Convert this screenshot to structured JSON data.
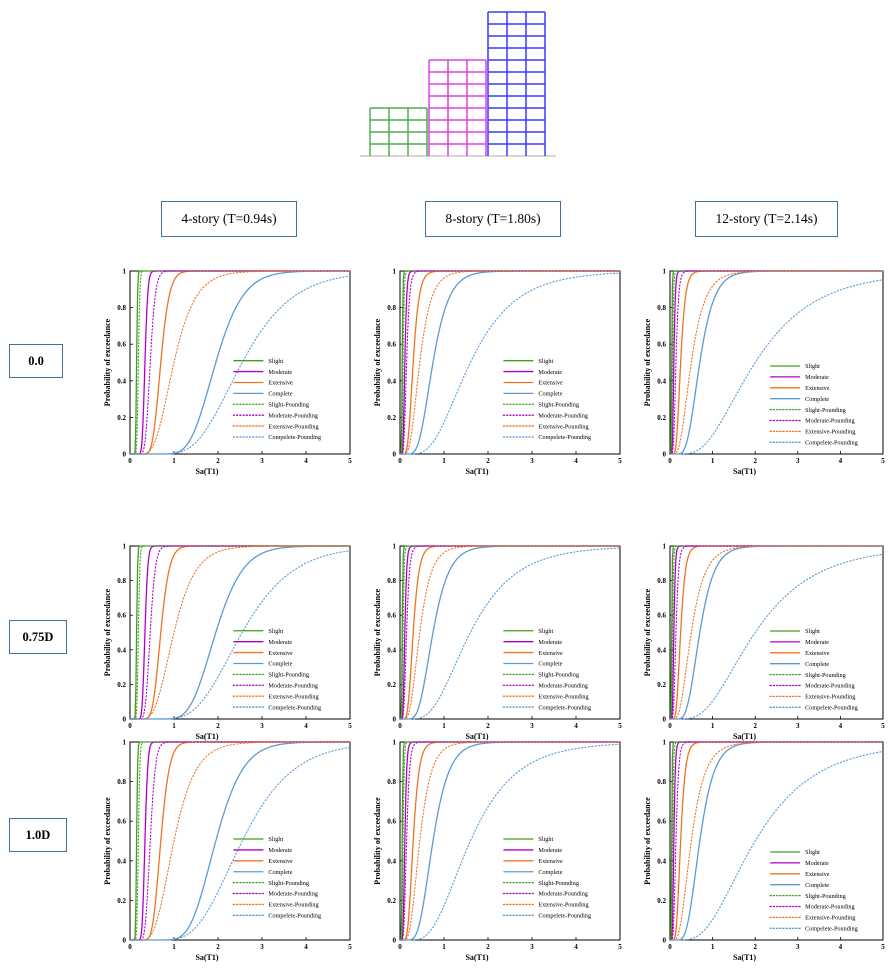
{
  "building_colors": [
    "#4caf50",
    "#e040e0",
    "#3a3aff"
  ],
  "column_headers": [
    "4-story (T=0.94s)",
    "8-story (T=1.80s)",
    "12-story (T=2.14s)"
  ],
  "row_headers": [
    "0.0",
    "0.75D",
    "1.0D"
  ],
  "colors": {
    "Slight": "#3f9f1f",
    "Moderate": "#b000c8",
    "Extensive": "#ee7424",
    "Complete": "#5b9bd5"
  },
  "chart_data": [
    {
      "type": "line",
      "row": "0.0",
      "column": "4-story (T=0.94s)",
      "xlabel": "Sa(T1)",
      "ylabel": "Probability of exceedance",
      "xlim": [
        0,
        5
      ],
      "ylim": [
        0,
        1
      ],
      "x_ticks": [
        "0",
        "1",
        "2",
        "3",
        "4",
        "5"
      ],
      "y_ticks": [
        "0",
        "0.2",
        "0.4",
        "0.6",
        "0.8",
        "1"
      ],
      "legend": "center-right",
      "series": [
        {
          "name": "Slight",
          "style": "solid",
          "color": "#3f9f1f",
          "median": 0.15,
          "beta": 0.12
        },
        {
          "name": "Moderate",
          "style": "solid",
          "color": "#b000c8",
          "median": 0.34,
          "beta": 0.15
        },
        {
          "name": "Extensive",
          "style": "solid",
          "color": "#ee7424",
          "median": 0.7,
          "beta": 0.22
        },
        {
          "name": "Complete",
          "style": "solid",
          "color": "#5b9bd5",
          "median": 1.95,
          "beta": 0.25
        },
        {
          "name": "Slight-Pounding",
          "style": "dotted",
          "color": "#3f9f1f",
          "median": 0.19,
          "beta": 0.14
        },
        {
          "name": "Moderate-Pounding",
          "style": "dotted",
          "color": "#b000c8",
          "median": 0.46,
          "beta": 0.2
        },
        {
          "name": "Extensive-Pounding",
          "style": "dotted",
          "color": "#ee7424",
          "median": 1.0,
          "beta": 0.38
        },
        {
          "name": "Compelete-Pounding",
          "style": "dotted",
          "color": "#5b9bd5",
          "median": 2.55,
          "beta": 0.35
        }
      ]
    },
    {
      "type": "line",
      "row": "0.0",
      "column": "8-story (T=1.80s)",
      "xlabel": "Sa(T1)",
      "ylabel": "Probability of exceedance",
      "xlim": [
        0,
        5
      ],
      "ylim": [
        0,
        1
      ],
      "x_ticks": [
        "0",
        "1",
        "2",
        "3",
        "4",
        "5"
      ],
      "y_ticks": [
        "0",
        "0.2",
        "0.4",
        "0.6",
        "0.8",
        "1"
      ],
      "legend": "center-right",
      "series": [
        {
          "name": "Slight",
          "style": "solid",
          "color": "#3f9f1f",
          "median": 0.05,
          "beta": 0.25
        },
        {
          "name": "Moderate",
          "style": "solid",
          "color": "#b000c8",
          "median": 0.11,
          "beta": 0.3
        },
        {
          "name": "Extensive",
          "style": "solid",
          "color": "#ee7424",
          "median": 0.3,
          "beta": 0.35
        },
        {
          "name": "Complete",
          "style": "solid",
          "color": "#5b9bd5",
          "median": 0.75,
          "beta": 0.38
        },
        {
          "name": "Slight-Pounding",
          "style": "dotted",
          "color": "#3f9f1f",
          "median": 0.07,
          "beta": 0.28
        },
        {
          "name": "Moderate-Pounding",
          "style": "dotted",
          "color": "#b000c8",
          "median": 0.15,
          "beta": 0.35
        },
        {
          "name": "Extensive-Pounding",
          "style": "dotted",
          "color": "#ee7424",
          "median": 0.45,
          "beta": 0.45
        },
        {
          "name": "Compelete-Pounding",
          "style": "dotted",
          "color": "#5b9bd5",
          "median": 1.6,
          "beta": 0.5
        }
      ]
    },
    {
      "type": "line",
      "row": "0.0",
      "column": "12-story (T=2.14s)",
      "xlabel": "Sa(T1)",
      "ylabel": "Probability of exceedance",
      "xlim": [
        0,
        5
      ],
      "ylim": [
        0,
        1
      ],
      "x_ticks": [
        "0",
        "1",
        "2",
        "3",
        "4",
        "5"
      ],
      "y_ticks": [
        "0",
        "0.2",
        "0.4",
        "0.6",
        "0.8",
        "1"
      ],
      "legend": "lower-right",
      "series": [
        {
          "name": "Slight",
          "style": "solid",
          "color": "#3f9f1f",
          "median": 0.04,
          "beta": 0.25
        },
        {
          "name": "Moderate",
          "style": "solid",
          "color": "#b000c8",
          "median": 0.09,
          "beta": 0.3
        },
        {
          "name": "Extensive",
          "style": "solid",
          "color": "#ee7424",
          "median": 0.25,
          "beta": 0.35
        },
        {
          "name": "Complete",
          "style": "solid",
          "color": "#5b9bd5",
          "median": 0.7,
          "beta": 0.38
        },
        {
          "name": "Slight-Pounding",
          "style": "dotted",
          "color": "#3f9f1f",
          "median": 0.06,
          "beta": 0.3
        },
        {
          "name": "Moderate-Pounding",
          "style": "dotted",
          "color": "#b000c8",
          "median": 0.14,
          "beta": 0.35
        },
        {
          "name": "Extensive-Pounding",
          "style": "dotted",
          "color": "#ee7424",
          "median": 0.5,
          "beta": 0.5
        },
        {
          "name": "Compelete-Pounding",
          "style": "dotted",
          "color": "#5b9bd5",
          "median": 2.0,
          "beta": 0.55
        }
      ]
    },
    {
      "type": "line",
      "row": "0.75D",
      "column": "4-story (T=0.94s)",
      "xlabel": "Sa(T1)",
      "ylabel": "Probability of exceedance",
      "xlim": [
        0,
        5
      ],
      "ylim": [
        0,
        1
      ],
      "x_ticks": [
        "0",
        "1",
        "2",
        "3",
        "4",
        "5"
      ],
      "y_ticks": [
        "0",
        "0.2",
        "0.4",
        "0.6",
        "0.8",
        "1"
      ],
      "legend": "center-right",
      "series": [
        {
          "name": "Slight",
          "style": "solid",
          "color": "#3f9f1f",
          "median": 0.15,
          "beta": 0.12
        },
        {
          "name": "Moderate",
          "style": "solid",
          "color": "#b000c8",
          "median": 0.34,
          "beta": 0.15
        },
        {
          "name": "Extensive",
          "style": "solid",
          "color": "#ee7424",
          "median": 0.7,
          "beta": 0.22
        },
        {
          "name": "Complete",
          "style": "solid",
          "color": "#5b9bd5",
          "median": 1.95,
          "beta": 0.25
        },
        {
          "name": "Slight-Pounding",
          "style": "dotted",
          "color": "#3f9f1f",
          "median": 0.19,
          "beta": 0.14
        },
        {
          "name": "Moderate-Pounding",
          "style": "dotted",
          "color": "#b000c8",
          "median": 0.46,
          "beta": 0.2
        },
        {
          "name": "Extensive-Pounding",
          "style": "dotted",
          "color": "#ee7424",
          "median": 1.0,
          "beta": 0.38
        },
        {
          "name": "Compelete-Pounding",
          "style": "dotted",
          "color": "#5b9bd5",
          "median": 2.55,
          "beta": 0.35
        }
      ]
    },
    {
      "type": "line",
      "row": "0.75D",
      "column": "8-story (T=1.80s)",
      "xlabel": "Sa(T1)",
      "ylabel": "Probability of exceedance",
      "xlim": [
        0,
        5
      ],
      "ylim": [
        0,
        1
      ],
      "x_ticks": [
        "0",
        "1",
        "2",
        "3",
        "4",
        "5"
      ],
      "y_ticks": [
        "0",
        "0.2",
        "0.4",
        "0.6",
        "0.8",
        "1"
      ],
      "legend": "center-right",
      "series": [
        {
          "name": "Slight",
          "style": "solid",
          "color": "#3f9f1f",
          "median": 0.05,
          "beta": 0.25
        },
        {
          "name": "Moderate",
          "style": "solid",
          "color": "#b000c8",
          "median": 0.11,
          "beta": 0.3
        },
        {
          "name": "Extensive",
          "style": "solid",
          "color": "#ee7424",
          "median": 0.3,
          "beta": 0.35
        },
        {
          "name": "Complete",
          "style": "solid",
          "color": "#5b9bd5",
          "median": 0.75,
          "beta": 0.38
        },
        {
          "name": "Slight-Pounding",
          "style": "dotted",
          "color": "#3f9f1f",
          "median": 0.07,
          "beta": 0.28
        },
        {
          "name": "Moderate-Pounding",
          "style": "dotted",
          "color": "#b000c8",
          "median": 0.15,
          "beta": 0.35
        },
        {
          "name": "Extensive-Pounding",
          "style": "dotted",
          "color": "#ee7424",
          "median": 0.45,
          "beta": 0.45
        },
        {
          "name": "Compelete-Pounding",
          "style": "dotted",
          "color": "#5b9bd5",
          "median": 1.6,
          "beta": 0.5
        }
      ]
    },
    {
      "type": "line",
      "row": "0.75D",
      "column": "12-story (T=2.14s)",
      "xlabel": "Sa(T1)",
      "ylabel": "Probability of exceedance",
      "xlim": [
        0,
        5
      ],
      "ylim": [
        0,
        1
      ],
      "x_ticks": [
        "0",
        "1",
        "2",
        "3",
        "4",
        "5"
      ],
      "y_ticks": [
        "0",
        "0.2",
        "0.4",
        "0.6",
        "0.8",
        "1"
      ],
      "legend": "lower-right",
      "series": [
        {
          "name": "Slight",
          "style": "solid",
          "color": "#3f9f1f",
          "median": 0.04,
          "beta": 0.25
        },
        {
          "name": "Moderate",
          "style": "solid",
          "color": "#b000c8",
          "median": 0.09,
          "beta": 0.3
        },
        {
          "name": "Extensive",
          "style": "solid",
          "color": "#ee7424",
          "median": 0.25,
          "beta": 0.35
        },
        {
          "name": "Complete",
          "style": "solid",
          "color": "#5b9bd5",
          "median": 0.7,
          "beta": 0.38
        },
        {
          "name": "Slight-Pounding",
          "style": "dotted",
          "color": "#3f9f1f",
          "median": 0.06,
          "beta": 0.3
        },
        {
          "name": "Moderate-Pounding",
          "style": "dotted",
          "color": "#b000c8",
          "median": 0.14,
          "beta": 0.35
        },
        {
          "name": "Extensive-Pounding",
          "style": "dotted",
          "color": "#ee7424",
          "median": 0.5,
          "beta": 0.5
        },
        {
          "name": "Compelete-Pounding",
          "style": "dotted",
          "color": "#5b9bd5",
          "median": 2.0,
          "beta": 0.55
        }
      ]
    },
    {
      "type": "line",
      "row": "1.0D",
      "column": "4-story (T=0.94s)",
      "xlabel": "Sa(T1)",
      "ylabel": "Probability of exceedance",
      "xlim": [
        0,
        5
      ],
      "ylim": [
        0,
        1
      ],
      "x_ticks": [
        "0",
        "1",
        "2",
        "3",
        "4",
        "5"
      ],
      "y_ticks": [
        "0",
        "0.2",
        "0.4",
        "0.6",
        "0.8",
        "1"
      ],
      "legend": "center-right",
      "series": [
        {
          "name": "Slight",
          "style": "solid",
          "color": "#3f9f1f",
          "median": 0.15,
          "beta": 0.12
        },
        {
          "name": "Moderate",
          "style": "solid",
          "color": "#b000c8",
          "median": 0.34,
          "beta": 0.15
        },
        {
          "name": "Extensive",
          "style": "solid",
          "color": "#ee7424",
          "median": 0.7,
          "beta": 0.22
        },
        {
          "name": "Complete",
          "style": "solid",
          "color": "#5b9bd5",
          "median": 1.95,
          "beta": 0.25
        },
        {
          "name": "Slight-Pounding",
          "style": "dotted",
          "color": "#3f9f1f",
          "median": 0.19,
          "beta": 0.14
        },
        {
          "name": "Moderate-Pounding",
          "style": "dotted",
          "color": "#b000c8",
          "median": 0.46,
          "beta": 0.2
        },
        {
          "name": "Extensive-Pounding",
          "style": "dotted",
          "color": "#ee7424",
          "median": 1.0,
          "beta": 0.38
        },
        {
          "name": "Compelete-Pounding",
          "style": "dotted",
          "color": "#5b9bd5",
          "median": 2.55,
          "beta": 0.35
        }
      ]
    },
    {
      "type": "line",
      "row": "1.0D",
      "column": "8-story (T=1.80s)",
      "xlabel": "Sa(T1)",
      "ylabel": "Probability of exceedance",
      "xlim": [
        0,
        5
      ],
      "ylim": [
        0,
        1
      ],
      "x_ticks": [
        "0",
        "1",
        "2",
        "3",
        "4",
        "5"
      ],
      "y_ticks": [
        "0",
        "0.2",
        "0.4",
        "0.6",
        "0.8",
        "1"
      ],
      "legend": "center-right",
      "series": [
        {
          "name": "Slight",
          "style": "solid",
          "color": "#3f9f1f",
          "median": 0.05,
          "beta": 0.25
        },
        {
          "name": "Moderate",
          "style": "solid",
          "color": "#b000c8",
          "median": 0.11,
          "beta": 0.3
        },
        {
          "name": "Extensive",
          "style": "solid",
          "color": "#ee7424",
          "median": 0.3,
          "beta": 0.35
        },
        {
          "name": "Complete",
          "style": "solid",
          "color": "#5b9bd5",
          "median": 0.75,
          "beta": 0.38
        },
        {
          "name": "Slight-Pounding",
          "style": "dotted",
          "color": "#3f9f1f",
          "median": 0.07,
          "beta": 0.28
        },
        {
          "name": "Moderate-Pounding",
          "style": "dotted",
          "color": "#b000c8",
          "median": 0.15,
          "beta": 0.35
        },
        {
          "name": "Extensive-Pounding",
          "style": "dotted",
          "color": "#ee7424",
          "median": 0.45,
          "beta": 0.45
        },
        {
          "name": "Compelete-Pounding",
          "style": "dotted",
          "color": "#5b9bd5",
          "median": 1.6,
          "beta": 0.5
        }
      ]
    },
    {
      "type": "line",
      "row": "1.0D",
      "column": "12-story (T=2.14s)",
      "xlabel": "Sa(T1)",
      "ylabel": "Probability of exceedance",
      "xlim": [
        0,
        5
      ],
      "ylim": [
        0,
        1
      ],
      "x_ticks": [
        "0",
        "1",
        "2",
        "3",
        "4",
        "5"
      ],
      "y_ticks": [
        "0",
        "0.2",
        "0.4",
        "0.6",
        "0.8",
        "1"
      ],
      "legend": "lower-right",
      "series": [
        {
          "name": "Slight",
          "style": "solid",
          "color": "#3f9f1f",
          "median": 0.04,
          "beta": 0.25
        },
        {
          "name": "Moderate",
          "style": "solid",
          "color": "#b000c8",
          "median": 0.09,
          "beta": 0.3
        },
        {
          "name": "Extensive",
          "style": "solid",
          "color": "#ee7424",
          "median": 0.25,
          "beta": 0.35
        },
        {
          "name": "Complete",
          "style": "solid",
          "color": "#5b9bd5",
          "median": 0.7,
          "beta": 0.38
        },
        {
          "name": "Slight-Pounding",
          "style": "dotted",
          "color": "#3f9f1f",
          "median": 0.06,
          "beta": 0.3
        },
        {
          "name": "Moderate-Pounding",
          "style": "dotted",
          "color": "#b000c8",
          "median": 0.14,
          "beta": 0.35
        },
        {
          "name": "Extensive-Pounding",
          "style": "dotted",
          "color": "#ee7424",
          "median": 0.5,
          "beta": 0.5
        },
        {
          "name": "Compelete-Pounding",
          "style": "dotted",
          "color": "#5b9bd5",
          "median": 2.0,
          "beta": 0.55
        }
      ]
    }
  ]
}
